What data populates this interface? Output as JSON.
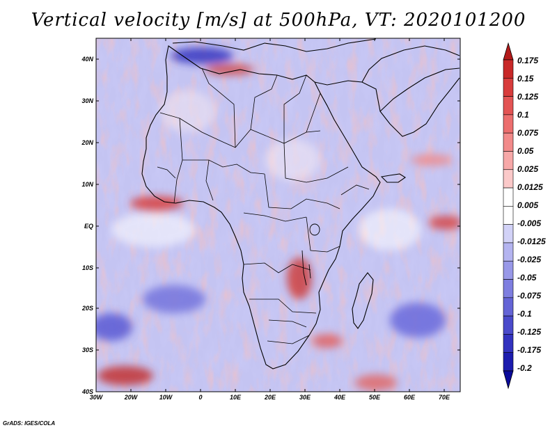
{
  "title": "Vertical velocity [m/s] at 500hPa, VT: 2020101200",
  "credit": "GrADS: IGES/COLA",
  "map": {
    "lat_labels": [
      "40N",
      "30N",
      "20N",
      "10N",
      "EQ",
      "10S",
      "20S",
      "30S",
      "40S"
    ],
    "lon_labels": [
      "30W",
      "20W",
      "10W",
      "0",
      "10E",
      "20E",
      "30E",
      "40E",
      "50E",
      "60E",
      "70E"
    ]
  },
  "colorbar": {
    "labels": [
      "0.175",
      "0.15",
      "0.125",
      "0.1",
      "0.075",
      "0.05",
      "0.025",
      "0.0125",
      "0.005",
      "-0.005",
      "-0.0125",
      "-0.025",
      "-0.05",
      "-0.075",
      "-0.1",
      "-0.125",
      "-0.175",
      "-0.2"
    ],
    "colors": [
      "#b31a1a",
      "#c82828",
      "#d83c3c",
      "#e35454",
      "#ec6e6e",
      "#f28a8a",
      "#f7a8a8",
      "#fbc9c9",
      "#ffffff",
      "#ffffff",
      "#d2d2f7",
      "#b4b4f0",
      "#9898e8",
      "#7e7ee0",
      "#6464d6",
      "#4a4acb",
      "#3232bf",
      "#1c1cae",
      "#0a0a9a"
    ]
  }
}
